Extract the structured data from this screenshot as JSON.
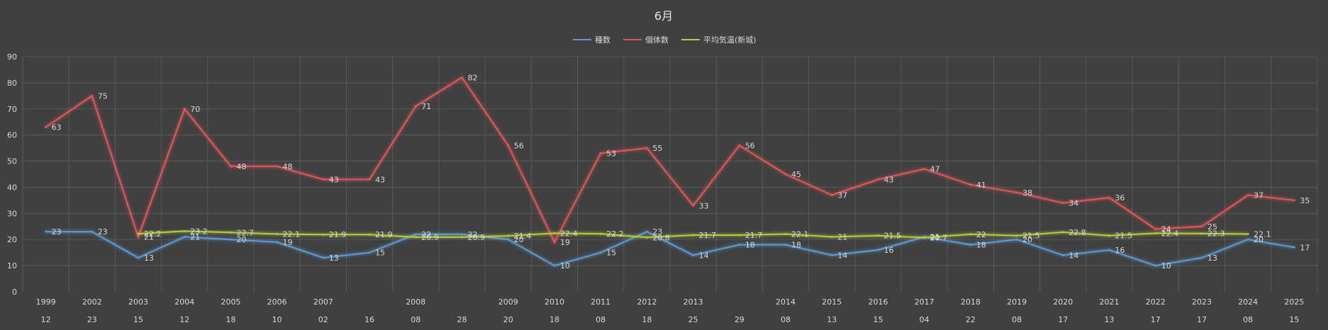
{
  "chart_data": {
    "type": "line",
    "title": "6月",
    "ylim": [
      0,
      90
    ],
    "y_ticks": [
      0,
      10,
      20,
      30,
      40,
      50,
      60,
      70,
      80,
      90
    ],
    "grid": true,
    "legend_position": "top-center",
    "x_year_labels": [
      "1999",
      "2002",
      "2003",
      "2004",
      "2005",
      "2006",
      "2007",
      "",
      "2008",
      "",
      "2009",
      "2010",
      "2011",
      "2012",
      "2013",
      "",
      "2014",
      "2015",
      "2016",
      "2017",
      "2018",
      "2019",
      "2020",
      "2021",
      "2022",
      "2023",
      "2024",
      "2025"
    ],
    "x_day_labels": [
      "12",
      "23",
      "15",
      "12",
      "18",
      "10",
      "02",
      "16",
      "08",
      "28",
      "20",
      "18",
      "08",
      "18",
      "25",
      "29",
      "08",
      "13",
      "15",
      "04",
      "22",
      "08",
      "17",
      "13",
      "17",
      "17",
      "08",
      "15"
    ],
    "series": [
      {
        "name": "種数",
        "color": "#5b9bd5",
        "values": [
          23,
          23,
          13,
          21,
          20,
          19,
          13,
          15,
          22,
          22,
          20,
          10,
          15,
          23,
          14,
          18,
          18,
          14,
          16,
          21,
          18,
          20,
          14,
          16,
          10,
          13,
          20,
          17
        ],
        "labels": [
          "23",
          "23",
          "13",
          "21",
          "20",
          "19",
          "13",
          "15",
          "22",
          "22",
          "20",
          "10",
          "15",
          "23",
          "14",
          "18",
          "18",
          "14",
          "16",
          "21",
          "18",
          "20",
          "14",
          "16",
          "10",
          "13",
          "20",
          "17"
        ]
      },
      {
        "name": "個体数",
        "color": "#e15759",
        "values": [
          63,
          75,
          21,
          70,
          48,
          48,
          43,
          43,
          71,
          82,
          56,
          19,
          53,
          55,
          33,
          56,
          45,
          37,
          43,
          47,
          41,
          38,
          34,
          36,
          24,
          25,
          37,
          35
        ],
        "labels": [
          "63",
          "75",
          "21",
          "70",
          "48",
          "48",
          "43",
          "43",
          "71",
          "82",
          "56",
          "19",
          "53",
          "55",
          "33",
          "56",
          "45",
          "37",
          "43",
          "47",
          "41",
          "38",
          "34",
          "36",
          "24",
          "25",
          "37",
          "35"
        ]
      },
      {
        "name": "平均気温(新城)",
        "color": "#b5cc3c",
        "values": [
          null,
          null,
          22.2,
          23.2,
          22.7,
          22.1,
          21.9,
          21.9,
          20.9,
          20.9,
          21.4,
          22.4,
          22.2,
          20.8,
          21.7,
          21.7,
          22.1,
          21,
          21.5,
          20.7,
          22,
          21.5,
          22.8,
          21.5,
          22.4,
          22.3,
          22.1,
          null
        ],
        "labels": [
          "",
          "",
          "22.2",
          "23.2",
          "22.7",
          "22.1",
          "21.9",
          "21.9",
          "20.9",
          "20.9",
          "21.4",
          "22.4",
          "22.2",
          "20.8",
          "21.7",
          "21.7",
          "22.1",
          "21",
          "21.5",
          "20.7",
          "22",
          "21.5",
          "22.8",
          "21.5",
          "22.4",
          "22.3",
          "22.1",
          ""
        ]
      }
    ]
  }
}
